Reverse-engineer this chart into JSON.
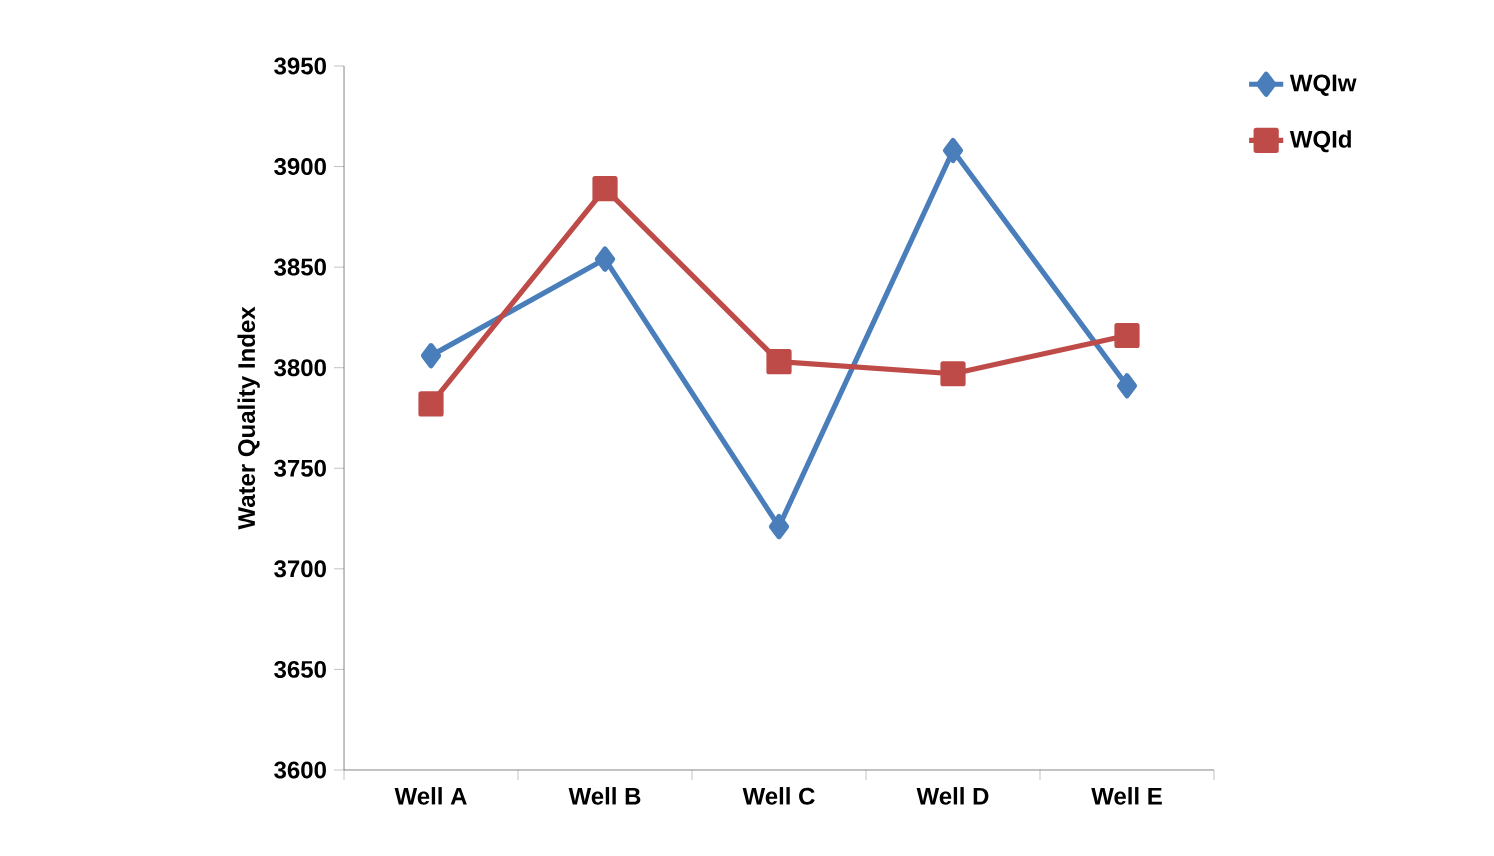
{
  "chart_data": {
    "type": "line",
    "ylabel": "Water Quality Index",
    "categories": [
      "Well A",
      "Well B",
      "Well C",
      "Well D",
      "Well E"
    ],
    "series": [
      {
        "name": "WQIw",
        "color": "#4a7ebb",
        "marker": "diamond",
        "values": [
          3806,
          3854,
          3721,
          3908,
          3791
        ]
      },
      {
        "name": "WQId",
        "color": "#be4b48",
        "marker": "square",
        "values": [
          3782,
          3889,
          3803,
          3797,
          3816
        ]
      }
    ],
    "ylim": [
      3600,
      3950
    ],
    "yticks": [
      3600,
      3650,
      3700,
      3750,
      3800,
      3850,
      3900,
      3950
    ],
    "grid": false,
    "legend": "top right",
    "line_style": "solid"
  }
}
